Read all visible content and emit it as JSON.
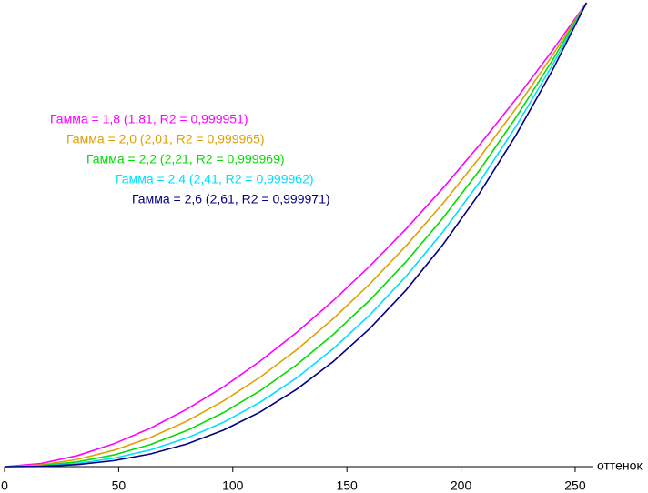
{
  "chart_data": {
    "type": "line",
    "x_label": "оттенок",
    "x": [
      0,
      16,
      32,
      48,
      64,
      80,
      96,
      112,
      128,
      144,
      160,
      176,
      192,
      208,
      224,
      240,
      255
    ],
    "xlim": [
      0,
      255
    ],
    "xticks": [
      0,
      50,
      100,
      150,
      200,
      250
    ],
    "ylim": [
      0,
      1
    ],
    "series": [
      {
        "name": "Гамма = 1,8 (1,81, R2 = 0,999951)",
        "color": "#ff00ff",
        "values": [
          0,
          0.0068,
          0.0239,
          0.0495,
          0.0831,
          0.1242,
          0.1722,
          0.2274,
          0.2894,
          0.3578,
          0.4322,
          0.5128,
          0.5999,
          0.6928,
          0.7918,
          0.8967,
          1
        ]
      },
      {
        "name": "Гамма = 2,0 (2,01, R2 = 0,999965)",
        "color": "#e0a000",
        "values": [
          0,
          0.0039,
          0.0157,
          0.0354,
          0.063,
          0.0984,
          0.1418,
          0.1929,
          0.252,
          0.3189,
          0.3937,
          0.4764,
          0.5669,
          0.6654,
          0.7716,
          0.8858,
          1
        ]
      },
      {
        "name": "Гамма = 2,2 (2,21, R2 = 0,999969)",
        "color": "#00dd00",
        "values": [
          0,
          0.0023,
          0.0104,
          0.0254,
          0.0478,
          0.0781,
          0.1166,
          0.1635,
          0.2196,
          0.2848,
          0.3588,
          0.4422,
          0.5353,
          0.6383,
          0.752,
          0.8755,
          1
        ]
      },
      {
        "name": "Гамма = 2,4 (2,41, R2 = 0,999962)",
        "color": "#00ddff",
        "values": [
          0,
          0.0013,
          0.0069,
          0.0182,
          0.0363,
          0.0619,
          0.0958,
          0.1388,
          0.1913,
          0.2541,
          0.3269,
          0.4107,
          0.5056,
          0.6126,
          0.7327,
          0.865,
          1
        ]
      },
      {
        "name": "Гамма = 2,6 (2,61, R2 = 0,999971)",
        "color": "#000080",
        "values": [
          0,
          0.0007,
          0.0045,
          0.013,
          0.0275,
          0.0491,
          0.0789,
          0.1177,
          0.1668,
          0.2265,
          0.2976,
          0.381,
          0.4781,
          0.5886,
          0.7139,
          0.8538,
          1
        ]
      }
    ]
  }
}
